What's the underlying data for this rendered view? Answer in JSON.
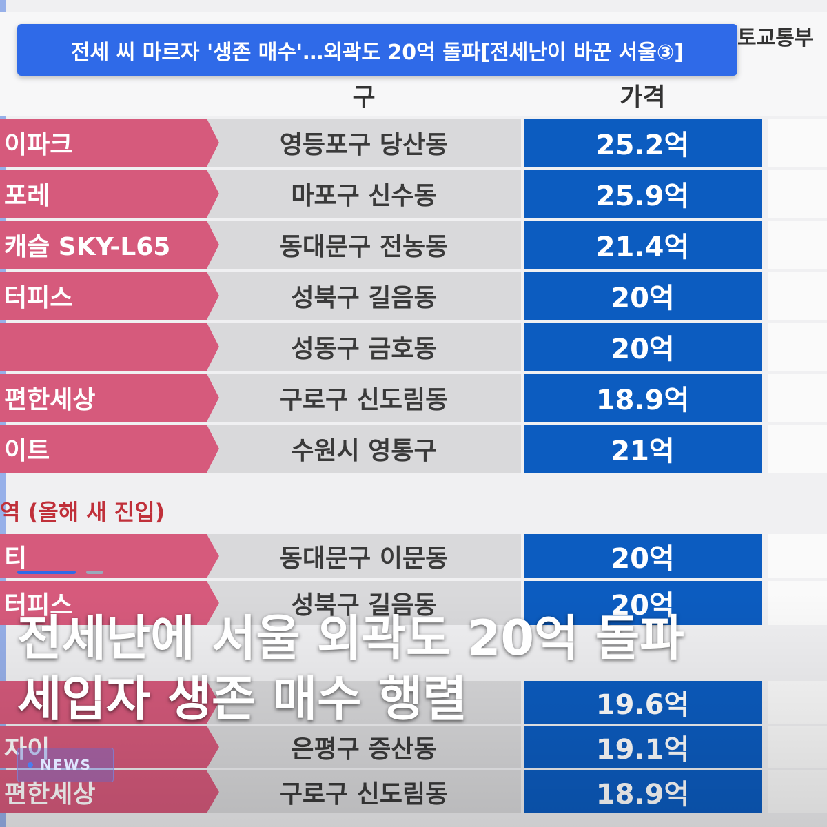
{
  "headline": "전세 씨 마르자 '생존 매수'…외곽도 20억 돌파[전세난이 바꾼 서울③]",
  "source": "토교통부",
  "table": {
    "columns": [
      "구",
      "가격"
    ],
    "rows": [
      {
        "name": "이파크",
        "district": "영등포구 당산동",
        "price": "25.2억"
      },
      {
        "name": "포레",
        "district": "마포구 신수동",
        "price": "25.9억"
      },
      {
        "name": "캐슬 SKY-L65",
        "district": "동대문구 전농동",
        "price": "21.4억"
      },
      {
        "name": "터피스",
        "district": "성북구 길음동",
        "price": "20억"
      },
      {
        "district": "성동구 금호동",
        "price": "20억"
      },
      {
        "name": "편한세상",
        "district": "구로구 신도림동",
        "price": "18.9억"
      },
      {
        "name": "이트",
        "district": "수원시 영통구",
        "price": "21억"
      },
      {
        "name": "티",
        "district": "동대문구 이문동",
        "price": "20억"
      },
      {
        "name": "터피스",
        "district": "성북구 길음동",
        "price": "20억"
      },
      {
        "price": "19.6억"
      },
      {
        "name": "자이",
        "district": "은평구 증산동",
        "price": "19.1억"
      },
      {
        "name": "편한세상",
        "district": "구로구 신도림동",
        "price": "18.9억"
      }
    ],
    "section_label": "역 (올해 새 진입)"
  },
  "overlay": {
    "lines": [
      "전세난에 서울 외곽도 20억 돌파",
      "세입자 생존 매수 행렬"
    ]
  },
  "badge": "NEWS"
}
